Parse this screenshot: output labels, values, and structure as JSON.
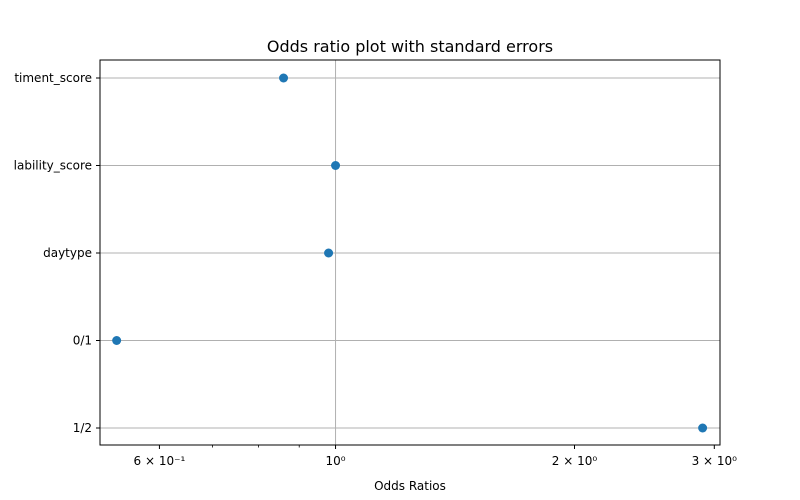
{
  "chart_data": {
    "type": "scatter",
    "title": "Odds ratio plot with standard errors",
    "xlabel": "Odds Ratios",
    "ylabel": "",
    "x_scale": "log",
    "xlim": [
      0.505,
      3.05
    ],
    "x_ticks": [
      {
        "value": 0.6,
        "label": "6 × 10⁻¹"
      },
      {
        "value": 1.0,
        "label": "10⁰"
      },
      {
        "value": 2.0,
        "label": "2 × 10⁰"
      },
      {
        "value": 3.0,
        "label": "3 × 10⁰"
      }
    ],
    "x_minor_ticks": [
      0.7,
      0.8,
      0.9
    ],
    "categories": [
      "timent_score",
      "lability_score",
      "daytype",
      "0/1",
      "1/2"
    ],
    "values": [
      0.86,
      1.0,
      0.98,
      0.53,
      2.9
    ],
    "grid": true,
    "marker_color": "#1f77b4"
  }
}
